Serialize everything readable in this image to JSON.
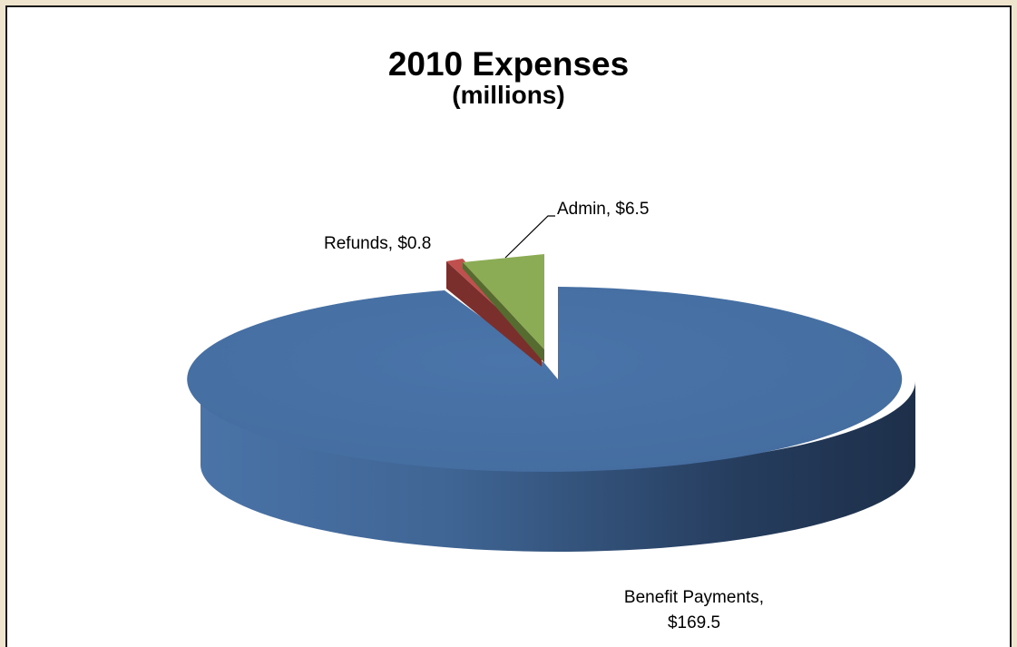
{
  "chart_data": {
    "type": "pie",
    "title": "2010 Expenses",
    "subtitle": "(millions)",
    "slices": [
      {
        "name": "Benefit Payments",
        "value": 169.5,
        "label_line1": "Benefit Payments,",
        "label_line2": "$169.5",
        "color": "#4a74a8"
      },
      {
        "name": "Refunds",
        "value": 0.8,
        "label_line1": "Refunds, $0.8",
        "color": "#c0504d"
      },
      {
        "name": "Admin",
        "value": 6.5,
        "label_line1": "Admin, $6.5",
        "color": "#8cab55"
      }
    ],
    "units": "millions"
  }
}
